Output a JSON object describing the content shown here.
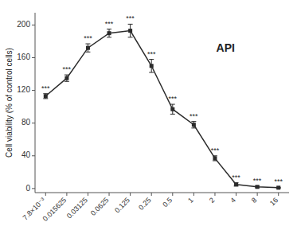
{
  "chart_data": {
    "type": "line",
    "categories": [
      "7.8×10⁻³",
      "0.015625",
      "0.03125",
      "0.0625",
      "0.125",
      "0.25",
      "0.5",
      "1",
      "2",
      "4",
      "8",
      "16"
    ],
    "values": [
      113,
      135,
      172,
      190,
      193,
      150,
      97,
      78,
      37,
      5,
      2,
      1
    ],
    "errors": [
      3,
      4,
      5,
      5,
      8,
      8,
      6,
      4,
      3,
      2,
      1,
      0.5
    ],
    "significance": [
      "***",
      "***",
      "***",
      "***",
      "***",
      "***",
      "***",
      "***",
      "***",
      "***",
      "***",
      "***"
    ],
    "ylabel": "Cell viability (% of control cells)",
    "annotation": "API",
    "ylim": [
      -5,
      215
    ],
    "yticks": [
      0,
      40,
      80,
      120,
      160,
      200
    ],
    "color": "#2b2b2b",
    "marker": "square",
    "line_style": "solid",
    "grid": false
  }
}
